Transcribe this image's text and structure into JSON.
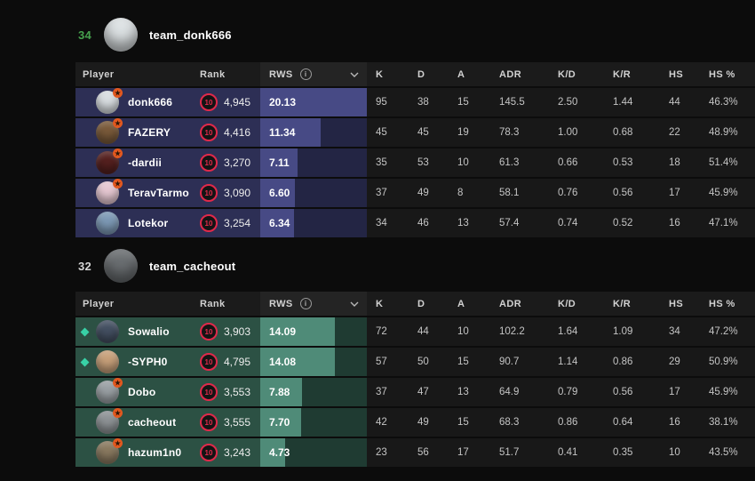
{
  "rws_max": 20.13,
  "table_headers": {
    "player": "Player",
    "rank": "Rank",
    "rws": "RWS",
    "k": "K",
    "d": "D",
    "a": "A",
    "adr": "ADR",
    "kd": "K/D",
    "kr": "K/R",
    "hs": "HS",
    "hs_pct": "HS %"
  },
  "icons": {
    "rws_info": "i",
    "star": "★"
  },
  "badge_colors": {
    "level_ring": "#e0294a",
    "star_bg": "#e2581f",
    "diamond": "#38d1a6"
  },
  "teams": [
    {
      "score": "34",
      "name": "team_donk666",
      "theme": {
        "score_color": "#46a24e",
        "row_bg": "#2d2f55",
        "rws_bg": "#232544",
        "bar": "#474a85",
        "avatar_color": "#dde2e4"
      },
      "players": [
        {
          "name": "donk666",
          "level": "10",
          "elo": "4,945",
          "rws": "20.13",
          "star": true,
          "diamond": false,
          "avatar_color": "#d9dee1",
          "k": "95",
          "d": "38",
          "a": "15",
          "adr": "145.5",
          "kd": "2.50",
          "kr": "1.44",
          "hs": "44",
          "hs_pct": "46.3%"
        },
        {
          "name": "FAZERY",
          "level": "10",
          "elo": "4,416",
          "rws": "11.34",
          "star": true,
          "diamond": false,
          "avatar_color": "#7a5a3a",
          "k": "45",
          "d": "45",
          "a": "19",
          "adr": "78.3",
          "kd": "1.00",
          "kr": "0.68",
          "hs": "22",
          "hs_pct": "48.9%"
        },
        {
          "name": "-dardii",
          "level": "10",
          "elo": "3,270",
          "rws": "7.11",
          "star": true,
          "diamond": false,
          "avatar_color": "#55201f",
          "k": "35",
          "d": "53",
          "a": "10",
          "adr": "61.3",
          "kd": "0.66",
          "kr": "0.53",
          "hs": "18",
          "hs_pct": "51.4%"
        },
        {
          "name": "TeravTarmo",
          "level": "10",
          "elo": "3,090",
          "rws": "6.60",
          "star": true,
          "diamond": false,
          "avatar_color": "#e6c8d2",
          "k": "37",
          "d": "49",
          "a": "8",
          "adr": "58.1",
          "kd": "0.76",
          "kr": "0.56",
          "hs": "17",
          "hs_pct": "45.9%"
        },
        {
          "name": "Lotekor",
          "level": "10",
          "elo": "3,254",
          "rws": "6.34",
          "star": false,
          "diamond": false,
          "avatar_color": "#7d99b5",
          "k": "34",
          "d": "46",
          "a": "13",
          "adr": "57.4",
          "kd": "0.74",
          "kr": "0.52",
          "hs": "16",
          "hs_pct": "47.1%"
        }
      ]
    },
    {
      "score": "32",
      "name": "team_cacheout",
      "theme": {
        "score_color": "#d6d6d6",
        "row_bg": "#2c5144",
        "rws_bg": "#1f3b32",
        "bar": "#4f8b78",
        "avatar_color": "#6b6f72"
      },
      "players": [
        {
          "name": "Sowalio",
          "level": "10",
          "elo": "3,903",
          "rws": "14.09",
          "star": false,
          "diamond": true,
          "avatar_color": "#445062",
          "k": "72",
          "d": "44",
          "a": "10",
          "adr": "102.2",
          "kd": "1.64",
          "kr": "1.09",
          "hs": "34",
          "hs_pct": "47.2%"
        },
        {
          "name": "-SYPH0",
          "level": "10",
          "elo": "4,795",
          "rws": "14.08",
          "star": false,
          "diamond": true,
          "avatar_color": "#c7a07a",
          "k": "57",
          "d": "50",
          "a": "15",
          "adr": "90.7",
          "kd": "1.14",
          "kr": "0.86",
          "hs": "29",
          "hs_pct": "50.9%"
        },
        {
          "name": "Dobo",
          "level": "10",
          "elo": "3,553",
          "rws": "7.88",
          "star": true,
          "diamond": false,
          "avatar_color": "#9aa0a4",
          "k": "37",
          "d": "47",
          "a": "13",
          "adr": "64.9",
          "kd": "0.79",
          "kr": "0.56",
          "hs": "17",
          "hs_pct": "45.9%"
        },
        {
          "name": "cacheout",
          "level": "10",
          "elo": "3,555",
          "rws": "7.70",
          "star": true,
          "diamond": false,
          "avatar_color": "#8e9396",
          "k": "42",
          "d": "49",
          "a": "15",
          "adr": "68.3",
          "kd": "0.86",
          "kr": "0.64",
          "hs": "16",
          "hs_pct": "38.1%"
        },
        {
          "name": "hazum1n0",
          "level": "10",
          "elo": "3,243",
          "rws": "4.73",
          "star": true,
          "diamond": false,
          "avatar_color": "#8a7a60",
          "k": "23",
          "d": "56",
          "a": "17",
          "adr": "51.7",
          "kd": "0.41",
          "kr": "0.35",
          "hs": "10",
          "hs_pct": "43.5%"
        }
      ]
    }
  ]
}
